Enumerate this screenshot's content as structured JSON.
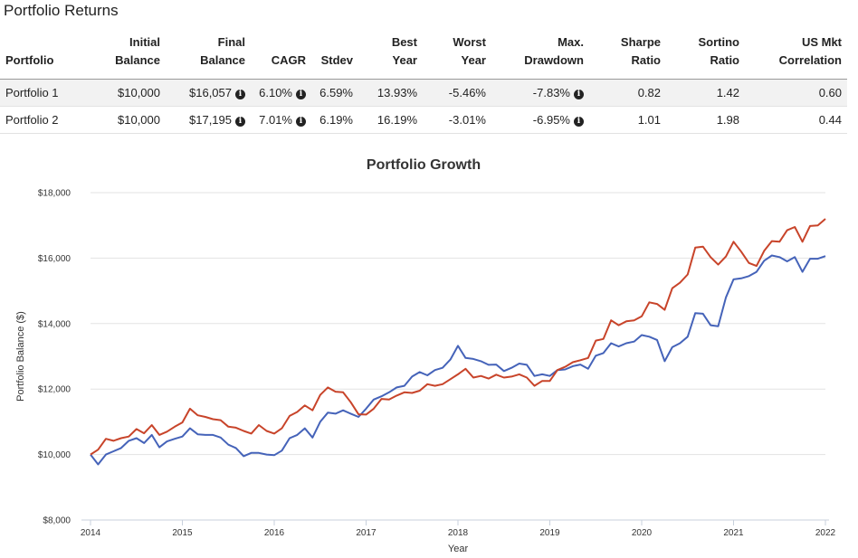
{
  "returns_section": {
    "title": "Portfolio Returns",
    "columns": [
      {
        "line1": "",
        "line2": "Portfolio"
      },
      {
        "line1": "Initial",
        "line2": "Balance"
      },
      {
        "line1": "Final",
        "line2": "Balance"
      },
      {
        "line1": "",
        "line2": "CAGR"
      },
      {
        "line1": "",
        "line2": "Stdev"
      },
      {
        "line1": "Best",
        "line2": "Year"
      },
      {
        "line1": "Worst",
        "line2": "Year"
      },
      {
        "line1": "Max.",
        "line2": "Drawdown"
      },
      {
        "line1": "Sharpe",
        "line2": "Ratio"
      },
      {
        "line1": "Sortino",
        "line2": "Ratio"
      },
      {
        "line1": "US Mkt",
        "line2": "Correlation"
      }
    ],
    "rows": [
      {
        "portfolio": "Portfolio 1",
        "initial_balance": "$10,000",
        "final_balance": "$16,057",
        "cagr": "6.10%",
        "stdev": "6.59%",
        "best_year": "13.93%",
        "worst_year": "-5.46%",
        "max_drawdown": "-7.83%",
        "sharpe": "0.82",
        "sortino": "1.42",
        "us_mkt_correlation": "0.60"
      },
      {
        "portfolio": "Portfolio 2",
        "initial_balance": "$10,000",
        "final_balance": "$17,195",
        "cagr": "7.01%",
        "stdev": "6.19%",
        "best_year": "16.19%",
        "worst_year": "-3.01%",
        "max_drawdown": "-6.95%",
        "sharpe": "1.01",
        "sortino": "1.98",
        "us_mkt_correlation": "0.44"
      }
    ],
    "info_icon": "info-circle-icon"
  },
  "chart_data": {
    "type": "line",
    "title": "Portfolio Growth",
    "xlabel": "Year",
    "ylabel": "Portfolio Balance ($)",
    "xlim": [
      2014,
      2022
    ],
    "ylim": [
      8000,
      18000
    ],
    "x_ticks": [
      "2014",
      "2015",
      "2016",
      "2017",
      "2018",
      "2019",
      "2020",
      "2021",
      "2022"
    ],
    "y_ticks": [
      {
        "value": 8000,
        "label": "$8,000"
      },
      {
        "value": 10000,
        "label": "$10,000"
      },
      {
        "value": 12000,
        "label": "$12,000"
      },
      {
        "value": 14000,
        "label": "$14,000"
      },
      {
        "value": 16000,
        "label": "$16,000"
      },
      {
        "value": 18000,
        "label": "$18,000"
      }
    ],
    "grid": true,
    "legend": "none",
    "series": [
      {
        "color": "#4563b9",
        "x": [
          2014.0,
          2014.083,
          2014.167,
          2014.25,
          2014.333,
          2014.417,
          2014.5,
          2014.583,
          2014.667,
          2014.75,
          2014.833,
          2014.917,
          2015.0,
          2015.083,
          2015.167,
          2015.25,
          2015.333,
          2015.417,
          2015.5,
          2015.583,
          2015.667,
          2015.75,
          2015.833,
          2015.917,
          2016.0,
          2016.083,
          2016.167,
          2016.25,
          2016.333,
          2016.417,
          2016.5,
          2016.583,
          2016.667,
          2016.75,
          2016.833,
          2016.917,
          2017.0,
          2017.083,
          2017.167,
          2017.25,
          2017.333,
          2017.417,
          2017.5,
          2017.583,
          2017.667,
          2017.75,
          2017.833,
          2017.917,
          2018.0,
          2018.083,
          2018.167,
          2018.25,
          2018.333,
          2018.417,
          2018.5,
          2018.583,
          2018.667,
          2018.75,
          2018.833,
          2018.917,
          2019.0,
          2019.083,
          2019.167,
          2019.25,
          2019.333,
          2019.417,
          2019.5,
          2019.583,
          2019.667,
          2019.75,
          2019.833,
          2019.917,
          2020.0,
          2020.083,
          2020.167,
          2020.25,
          2020.333,
          2020.417,
          2020.5,
          2020.583,
          2020.667,
          2020.75,
          2020.833,
          2020.917,
          2021.0,
          2021.083,
          2021.167,
          2021.25,
          2021.333,
          2021.417,
          2021.5,
          2021.583,
          2021.667,
          2021.75,
          2021.833,
          2021.917,
          2022.0
        ],
        "values": [
          10000,
          9700,
          10000,
          10100,
          10200,
          10420,
          10500,
          10350,
          10600,
          10220,
          10400,
          10480,
          10550,
          10800,
          10620,
          10600,
          10600,
          10520,
          10300,
          10200,
          9950,
          10050,
          10050,
          10000,
          9980,
          10120,
          10500,
          10600,
          10800,
          10520,
          11000,
          11280,
          11250,
          11350,
          11250,
          11150,
          11400,
          11680,
          11780,
          11900,
          12050,
          12100,
          12380,
          12520,
          12420,
          12580,
          12650,
          12900,
          13320,
          12950,
          12920,
          12850,
          12740,
          12750,
          12550,
          12650,
          12780,
          12740,
          12400,
          12450,
          12400,
          12580,
          12600,
          12700,
          12750,
          12620,
          13020,
          13100,
          13400,
          13300,
          13400,
          13450,
          13650,
          13600,
          13500,
          12850,
          13280,
          13400,
          13600,
          14320,
          14300,
          13950,
          13920,
          14800,
          15350,
          15380,
          15450,
          15580,
          15920,
          16080,
          16030,
          15900,
          16030,
          15580,
          15980,
          15980,
          16060
        ]
      },
      {
        "color": "#c8442a",
        "x": [
          2014.0,
          2014.083,
          2014.167,
          2014.25,
          2014.333,
          2014.417,
          2014.5,
          2014.583,
          2014.667,
          2014.75,
          2014.833,
          2014.917,
          2015.0,
          2015.083,
          2015.167,
          2015.25,
          2015.333,
          2015.417,
          2015.5,
          2015.583,
          2015.667,
          2015.75,
          2015.833,
          2015.917,
          2016.0,
          2016.083,
          2016.167,
          2016.25,
          2016.333,
          2016.417,
          2016.5,
          2016.583,
          2016.667,
          2016.75,
          2016.833,
          2016.917,
          2017.0,
          2017.083,
          2017.167,
          2017.25,
          2017.333,
          2017.417,
          2017.5,
          2017.583,
          2017.667,
          2017.75,
          2017.833,
          2017.917,
          2018.0,
          2018.083,
          2018.167,
          2018.25,
          2018.333,
          2018.417,
          2018.5,
          2018.583,
          2018.667,
          2018.75,
          2018.833,
          2018.917,
          2019.0,
          2019.083,
          2019.167,
          2019.25,
          2019.333,
          2019.417,
          2019.5,
          2019.583,
          2019.667,
          2019.75,
          2019.833,
          2019.917,
          2020.0,
          2020.083,
          2020.167,
          2020.25,
          2020.333,
          2020.417,
          2020.5,
          2020.583,
          2020.667,
          2020.75,
          2020.833,
          2020.917,
          2021.0,
          2021.083,
          2021.167,
          2021.25,
          2021.333,
          2021.417,
          2021.5,
          2021.583,
          2021.667,
          2021.75,
          2021.833,
          2021.917,
          2022.0
        ],
        "values": [
          10000,
          10150,
          10480,
          10420,
          10500,
          10550,
          10780,
          10650,
          10900,
          10600,
          10700,
          10850,
          10980,
          11400,
          11200,
          11150,
          11080,
          11050,
          10850,
          10820,
          10720,
          10640,
          10900,
          10720,
          10640,
          10800,
          11180,
          11300,
          11500,
          11350,
          11820,
          12050,
          11920,
          11900,
          11600,
          11230,
          11220,
          11400,
          11700,
          11680,
          11800,
          11900,
          11880,
          11950,
          12150,
          12100,
          12150,
          12300,
          12450,
          12620,
          12350,
          12400,
          12320,
          12440,
          12350,
          12380,
          12450,
          12350,
          12100,
          12250,
          12250,
          12580,
          12680,
          12820,
          12880,
          12950,
          13480,
          13530,
          14100,
          13950,
          14070,
          14100,
          14220,
          14650,
          14600,
          14420,
          15080,
          15250,
          15500,
          16320,
          16350,
          16030,
          15800,
          16050,
          16500,
          16200,
          15850,
          15760,
          16220,
          16520,
          16500,
          16850,
          16950,
          16500,
          16980,
          17000,
          17200
        ]
      }
    ]
  }
}
